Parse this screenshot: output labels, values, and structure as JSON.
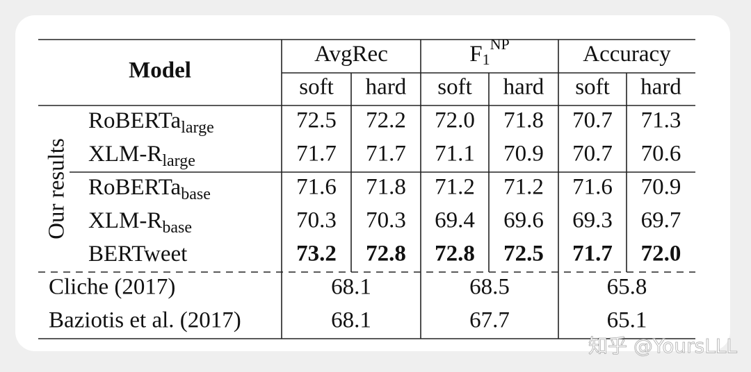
{
  "table": {
    "header": {
      "model": "Model",
      "groups": [
        {
          "text": "AvgRec"
        },
        {
          "text": "F",
          "sub": "1",
          "sup": "NP"
        },
        {
          "text": "Accuracy"
        }
      ],
      "subheaders": [
        "soft",
        "hard",
        "soft",
        "hard",
        "soft",
        "hard"
      ]
    },
    "group_label": "Our results",
    "our_rows": [
      {
        "model": "RoBERTa",
        "sub": "large",
        "values": [
          "72.5",
          "72.2",
          "72.0",
          "71.8",
          "70.7",
          "71.3"
        ],
        "bold": false
      },
      {
        "model": "XLM-R",
        "sub": "large",
        "values": [
          "71.7",
          "71.7",
          "71.1",
          "70.9",
          "70.7",
          "70.6"
        ],
        "bold": false
      },
      {
        "model": "RoBERTa",
        "sub": "base",
        "values": [
          "71.6",
          "71.8",
          "71.2",
          "71.2",
          "71.6",
          "70.9"
        ],
        "bold": false
      },
      {
        "model": "XLM-R",
        "sub": "base",
        "values": [
          "70.3",
          "70.3",
          "69.4",
          "69.6",
          "69.3",
          "69.7"
        ],
        "bold": false
      },
      {
        "model": "BERTweet",
        "values": [
          "73.2",
          "72.8",
          "72.8",
          "72.5",
          "71.7",
          "72.0"
        ],
        "bold": true
      }
    ],
    "baseline_rows": [
      {
        "model": "Cliche (2017)",
        "values": [
          "68.1",
          "68.5",
          "65.8"
        ]
      },
      {
        "model": "Baziotis et al. (2017)",
        "values": [
          "68.1",
          "67.7",
          "65.1"
        ]
      }
    ]
  },
  "watermark": "知乎 @YoursLLL"
}
